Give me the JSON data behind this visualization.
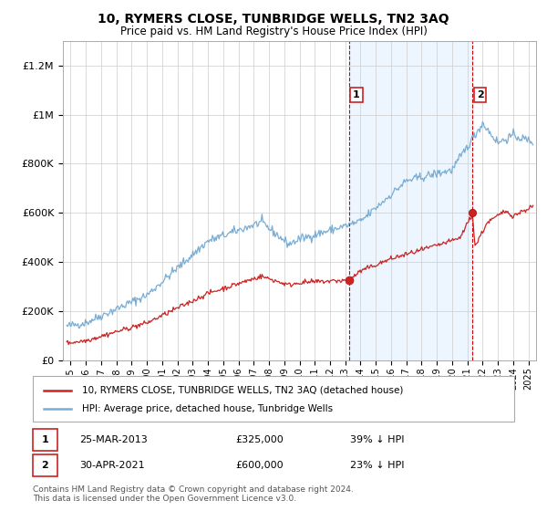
{
  "title": "10, RYMERS CLOSE, TUNBRIDGE WELLS, TN2 3AQ",
  "subtitle": "Price paid vs. HM Land Registry's House Price Index (HPI)",
  "ylim": [
    0,
    1300000
  ],
  "xlim": [
    1994.5,
    2025.5
  ],
  "yticks": [
    0,
    200000,
    400000,
    600000,
    800000,
    1000000,
    1200000
  ],
  "ytick_labels": [
    "£0",
    "£200K",
    "£400K",
    "£600K",
    "£800K",
    "£1M",
    "£1.2M"
  ],
  "xticks": [
    1995,
    1996,
    1997,
    1998,
    1999,
    2000,
    2001,
    2002,
    2003,
    2004,
    2005,
    2006,
    2007,
    2008,
    2009,
    2010,
    2011,
    2012,
    2013,
    2014,
    2015,
    2016,
    2017,
    2018,
    2019,
    2020,
    2021,
    2022,
    2023,
    2024,
    2025
  ],
  "hpi_color": "#7aadd4",
  "hpi_fill_color": "#ddeeff",
  "price_color": "#cc2222",
  "marker1_x": 2013.23,
  "marker1_y": 325000,
  "marker2_x": 2021.33,
  "marker2_y": 600000,
  "legend_line1": "10, RYMERS CLOSE, TUNBRIDGE WELLS, TN2 3AQ (detached house)",
  "legend_line2": "HPI: Average price, detached house, Tunbridge Wells",
  "table_row1_num": "1",
  "table_row1_date": "25-MAR-2013",
  "table_row1_price": "£325,000",
  "table_row1_hpi": "39% ↓ HPI",
  "table_row2_num": "2",
  "table_row2_date": "30-APR-2021",
  "table_row2_price": "£600,000",
  "table_row2_hpi": "23% ↓ HPI",
  "footnote": "Contains HM Land Registry data © Crown copyright and database right 2024.\nThis data is licensed under the Open Government Licence v3.0.",
  "background_color": "#ffffff",
  "grid_color": "#cccccc",
  "shade_color": "#ddeeff"
}
